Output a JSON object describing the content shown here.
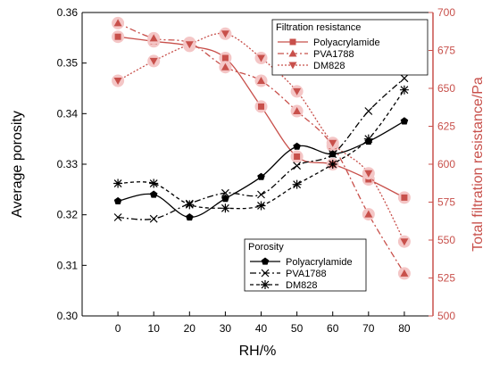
{
  "colors": {
    "left_axis": "#000000",
    "right_axis": "#c8504b",
    "marker_halo": "#f4c6c6"
  },
  "chart_data": {
    "type": "line",
    "x": [
      0,
      10,
      20,
      30,
      40,
      50,
      60,
      70,
      80
    ],
    "x_tick_labels": [
      "0",
      "10",
      "20",
      "30",
      "40",
      "50",
      "60",
      "70",
      "80"
    ],
    "xlabel": "RH/%",
    "xlim": [
      -10,
      88
    ],
    "left_axis": {
      "label": "Average porosity",
      "ylim": [
        0.3,
        0.36
      ],
      "ticks": [
        "0.30",
        "0.31",
        "0.32",
        "0.33",
        "0.34",
        "0.35",
        "0.36"
      ],
      "tick_values": [
        0.3,
        0.31,
        0.32,
        0.33,
        0.34,
        0.35,
        0.36
      ]
    },
    "right_axis": {
      "label": "Total filtration resistance/Pa",
      "ylim": [
        500,
        700
      ],
      "ticks": [
        "500",
        "525",
        "550",
        "575",
        "600",
        "625",
        "650",
        "675",
        "700"
      ],
      "tick_values": [
        500,
        525,
        550,
        575,
        600,
        625,
        650,
        675,
        700
      ]
    },
    "legends": [
      {
        "title": "Filtration resistance",
        "placement": "top-right",
        "entries": [
          {
            "name": "Polyacrylamide",
            "marker": "square",
            "dash": "solid"
          },
          {
            "name": "PVA1788",
            "marker": "triangle-up",
            "dash": "dashdot"
          },
          {
            "name": "DM828",
            "marker": "triangle-down",
            "dash": "dot"
          }
        ]
      },
      {
        "title": "Porosity",
        "placement": "lower-middle",
        "entries": [
          {
            "name": "Polyacrylamide",
            "marker": "pentagon",
            "dash": "solid"
          },
          {
            "name": "PVA1788",
            "marker": "x",
            "dash": "dashdot"
          },
          {
            "name": "DM828",
            "marker": "asterisk",
            "dash": "dash"
          }
        ]
      }
    ],
    "series": [
      {
        "name": "Polyacrylamide",
        "group": "Filtration resistance",
        "axis": "right",
        "marker": "square",
        "dash": "solid",
        "values": [
          684,
          681,
          678,
          670,
          638,
          605,
          600,
          590,
          578
        ]
      },
      {
        "name": "PVA1788",
        "group": "Filtration resistance",
        "axis": "right",
        "marker": "triangle-up",
        "dash": "dashdot",
        "values": [
          693,
          683,
          680,
          664,
          655,
          635,
          612,
          567,
          528
        ]
      },
      {
        "name": "DM828",
        "group": "Filtration resistance",
        "axis": "right",
        "marker": "triangle-down",
        "dash": "dot",
        "values": [
          655,
          668,
          679,
          686,
          670,
          648,
          614,
          594,
          549
        ]
      },
      {
        "name": "Polyacrylamide",
        "group": "Porosity",
        "axis": "left",
        "marker": "pentagon",
        "dash": "solid",
        "values": [
          0.3227,
          0.324,
          0.3195,
          0.3232,
          0.3275,
          0.3335,
          0.332,
          0.3345,
          0.3385
        ]
      },
      {
        "name": "PVA1788",
        "group": "Porosity",
        "axis": "left",
        "marker": "x",
        "dash": "dashdot",
        "values": [
          0.3195,
          0.3192,
          0.3222,
          0.3243,
          0.324,
          0.3297,
          0.332,
          0.3405,
          0.347
        ]
      },
      {
        "name": "DM828",
        "group": "Porosity",
        "axis": "left",
        "marker": "asterisk",
        "dash": "dash",
        "values": [
          0.3262,
          0.3262,
          0.322,
          0.3213,
          0.3218,
          0.326,
          0.33,
          0.335,
          0.3447
        ]
      }
    ]
  }
}
